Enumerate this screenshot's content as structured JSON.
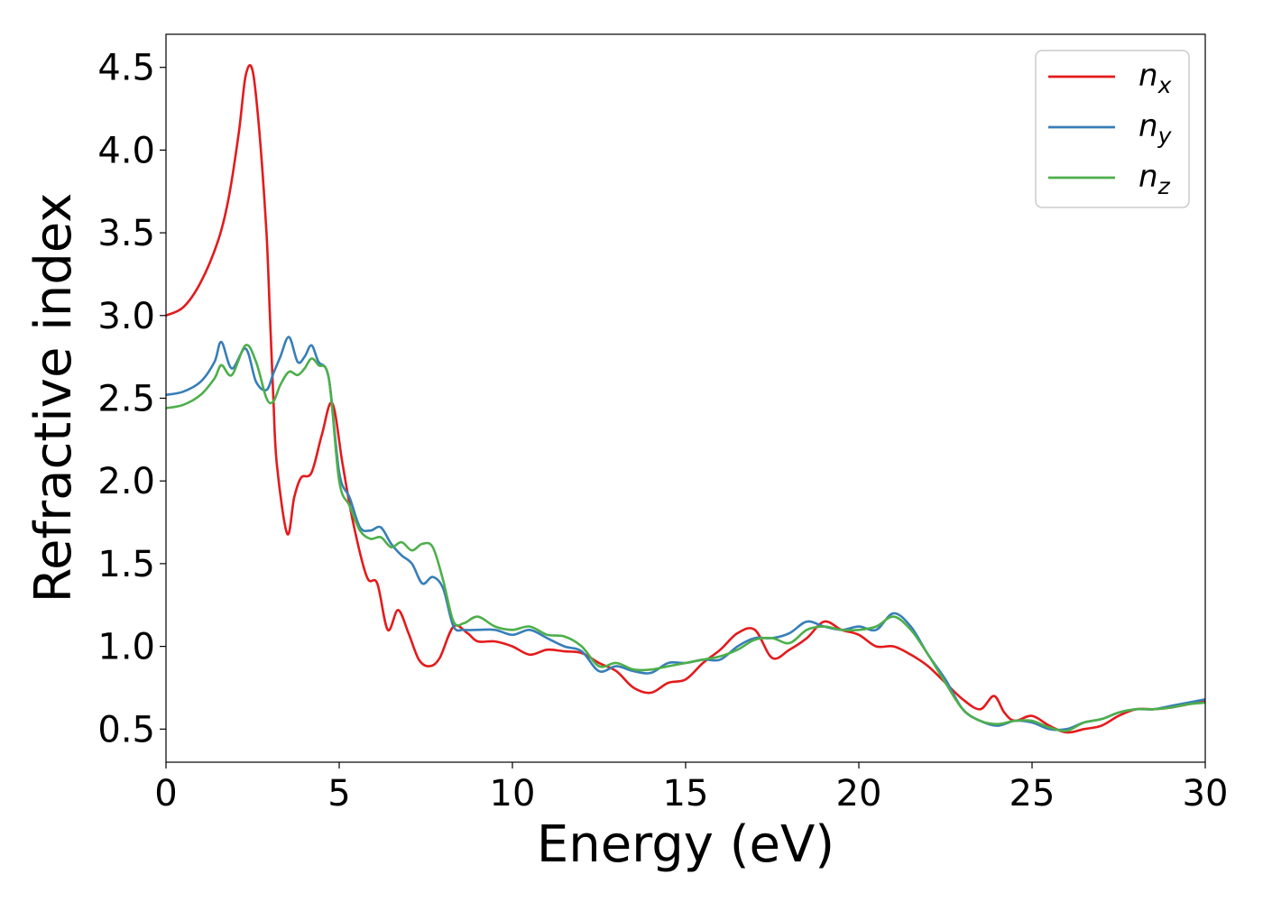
{
  "chart_data": {
    "type": "line",
    "title": "",
    "xlabel": "Energy (eV)",
    "ylabel": "Refractive index",
    "xlim": [
      0,
      30
    ],
    "ylim": [
      0.3,
      4.7
    ],
    "xticks": [
      "0",
      "5",
      "10",
      "15",
      "20",
      "25",
      "30"
    ],
    "yticks": [
      "0.5",
      "1.0",
      "1.5",
      "2.0",
      "2.5",
      "3.0",
      "3.5",
      "4.0",
      "4.5"
    ],
    "grid": false,
    "legend_position": "top-right",
    "series": [
      {
        "name": "n",
        "subscript": "x",
        "color": "#e41a1c",
        "x": [
          0,
          0.5,
          1.0,
          1.5,
          1.8,
          2.1,
          2.3,
          2.5,
          2.7,
          2.9,
          3.0,
          3.1,
          3.2,
          3.5,
          3.7,
          3.9,
          4.2,
          4.5,
          4.8,
          5.1,
          5.4,
          5.8,
          6.1,
          6.4,
          6.7,
          7.0,
          7.3,
          7.6,
          7.9,
          8.3,
          8.7,
          9.0,
          9.5,
          10.0,
          10.5,
          11.0,
          11.5,
          12.0,
          12.5,
          13.0,
          13.5,
          14.0,
          14.5,
          15.0,
          15.5,
          16.0,
          16.5,
          17.0,
          17.5,
          18.0,
          18.5,
          19.0,
          19.5,
          20.0,
          20.5,
          21.0,
          21.5,
          22.0,
          22.5,
          23.0,
          23.5,
          23.9,
          24.2,
          24.5,
          25.0,
          25.5,
          26.0,
          26.5,
          27.0,
          27.5,
          28.0,
          28.5,
          29.0,
          29.5,
          30.0
        ],
        "y": [
          3.0,
          3.05,
          3.2,
          3.45,
          3.7,
          4.1,
          4.45,
          4.48,
          4.1,
          3.5,
          3.0,
          2.5,
          2.1,
          1.68,
          1.9,
          2.02,
          2.05,
          2.28,
          2.47,
          2.1,
          1.75,
          1.42,
          1.38,
          1.1,
          1.22,
          1.08,
          0.92,
          0.88,
          0.93,
          1.12,
          1.08,
          1.03,
          1.03,
          1.0,
          0.95,
          0.98,
          0.97,
          0.96,
          0.9,
          0.85,
          0.75,
          0.72,
          0.78,
          0.8,
          0.9,
          0.98,
          1.08,
          1.1,
          0.93,
          0.98,
          1.05,
          1.15,
          1.1,
          1.07,
          1.0,
          1.0,
          0.95,
          0.88,
          0.78,
          0.68,
          0.62,
          0.7,
          0.6,
          0.55,
          0.58,
          0.52,
          0.48,
          0.5,
          0.52,
          0.58,
          0.62,
          0.62,
          0.63,
          0.65,
          0.67
        ]
      },
      {
        "name": "n",
        "subscript": "y",
        "color": "#377eb8",
        "x": [
          0,
          0.5,
          1.0,
          1.4,
          1.6,
          1.9,
          2.3,
          2.6,
          2.9,
          3.1,
          3.3,
          3.55,
          3.8,
          4.0,
          4.2,
          4.4,
          4.7,
          5.0,
          5.3,
          5.6,
          5.9,
          6.2,
          6.5,
          6.8,
          7.1,
          7.4,
          7.7,
          8.0,
          8.3,
          8.6,
          9.0,
          9.5,
          10.0,
          10.5,
          11.0,
          11.5,
          12.0,
          12.5,
          13.0,
          13.5,
          14.0,
          14.5,
          15.0,
          15.5,
          16.0,
          16.5,
          17.0,
          17.5,
          18.0,
          18.5,
          19.0,
          19.5,
          20.0,
          20.5,
          21.0,
          21.5,
          22.0,
          22.5,
          23.0,
          23.5,
          24.0,
          24.5,
          25.0,
          25.5,
          26.0,
          26.5,
          27.0,
          27.5,
          28.0,
          28.5,
          29.0,
          29.5,
          30.0
        ],
        "y": [
          2.52,
          2.54,
          2.6,
          2.72,
          2.84,
          2.68,
          2.8,
          2.6,
          2.55,
          2.65,
          2.75,
          2.87,
          2.72,
          2.75,
          2.82,
          2.72,
          2.62,
          2.05,
          1.9,
          1.72,
          1.7,
          1.72,
          1.62,
          1.55,
          1.5,
          1.38,
          1.42,
          1.35,
          1.12,
          1.1,
          1.1,
          1.1,
          1.07,
          1.1,
          1.05,
          1.0,
          0.97,
          0.85,
          0.88,
          0.85,
          0.84,
          0.9,
          0.9,
          0.92,
          0.92,
          1.0,
          1.05,
          1.05,
          1.08,
          1.15,
          1.12,
          1.1,
          1.12,
          1.1,
          1.2,
          1.12,
          0.95,
          0.8,
          0.62,
          0.55,
          0.52,
          0.55,
          0.54,
          0.5,
          0.5,
          0.54,
          0.56,
          0.6,
          0.62,
          0.62,
          0.64,
          0.66,
          0.68
        ]
      },
      {
        "name": "n",
        "subscript": "z",
        "color": "#4daf4a",
        "x": [
          0,
          0.5,
          1.0,
          1.4,
          1.6,
          1.9,
          2.3,
          2.6,
          2.9,
          3.1,
          3.3,
          3.55,
          3.8,
          4.0,
          4.2,
          4.4,
          4.7,
          5.0,
          5.3,
          5.6,
          5.9,
          6.2,
          6.5,
          6.8,
          7.1,
          7.4,
          7.7,
          8.0,
          8.3,
          8.6,
          9.0,
          9.5,
          10.0,
          10.5,
          11.0,
          11.5,
          12.0,
          12.5,
          13.0,
          13.5,
          14.0,
          14.5,
          15.0,
          15.5,
          16.0,
          16.5,
          17.0,
          17.5,
          18.0,
          18.5,
          19.0,
          19.5,
          20.0,
          20.5,
          21.0,
          21.5,
          22.0,
          22.5,
          23.0,
          23.5,
          24.0,
          24.5,
          25.0,
          25.5,
          26.0,
          26.5,
          27.0,
          27.5,
          28.0,
          28.5,
          29.0,
          29.5,
          30.0
        ],
        "y": [
          2.44,
          2.46,
          2.52,
          2.62,
          2.7,
          2.64,
          2.82,
          2.72,
          2.5,
          2.48,
          2.58,
          2.66,
          2.64,
          2.68,
          2.74,
          2.7,
          2.62,
          2.0,
          1.85,
          1.7,
          1.65,
          1.66,
          1.6,
          1.63,
          1.58,
          1.62,
          1.6,
          1.4,
          1.15,
          1.14,
          1.18,
          1.12,
          1.1,
          1.12,
          1.07,
          1.06,
          1.0,
          0.88,
          0.9,
          0.86,
          0.86,
          0.88,
          0.9,
          0.92,
          0.94,
          0.98,
          1.04,
          1.05,
          1.02,
          1.1,
          1.12,
          1.1,
          1.1,
          1.12,
          1.18,
          1.1,
          0.95,
          0.78,
          0.62,
          0.55,
          0.53,
          0.55,
          0.55,
          0.51,
          0.49,
          0.54,
          0.56,
          0.6,
          0.62,
          0.62,
          0.63,
          0.65,
          0.66
        ]
      }
    ]
  }
}
